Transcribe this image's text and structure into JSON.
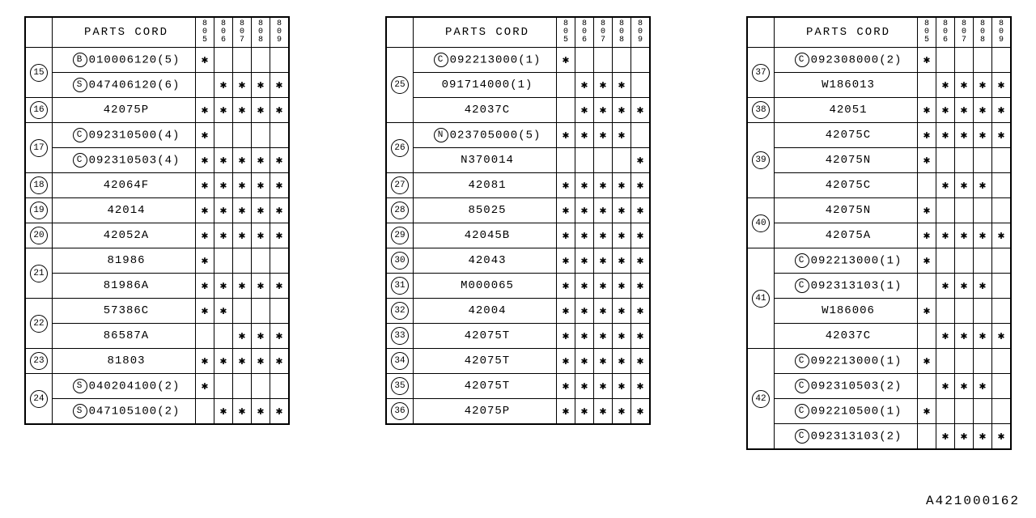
{
  "header_label": "PARTS CORD",
  "year_columns": [
    "805",
    "806",
    "807",
    "808",
    "809"
  ],
  "footer_id": "A421000162",
  "star": "*",
  "tables": [
    {
      "rows": [
        {
          "num": "15",
          "prefix": "B",
          "part": "010006120(5)",
          "marks": [
            "*",
            "",
            "",
            "",
            ""
          ],
          "group_start": true
        },
        {
          "num": "",
          "prefix": "S",
          "part": "047406120(6)",
          "marks": [
            "",
            "*",
            "*",
            "*",
            "*"
          ],
          "group_end": true
        },
        {
          "num": "16",
          "prefix": "",
          "part": "42075P",
          "marks": [
            "*",
            "*",
            "*",
            "*",
            "*"
          ]
        },
        {
          "num": "17",
          "prefix": "C",
          "part": "092310500(4)",
          "marks": [
            "*",
            "",
            "",
            "",
            ""
          ],
          "group_start": true
        },
        {
          "num": "",
          "prefix": "C",
          "part": "092310503(4)",
          "marks": [
            "*",
            "*",
            "*",
            "*",
            "*"
          ],
          "group_end": true
        },
        {
          "num": "18",
          "prefix": "",
          "part": "42064F",
          "marks": [
            "*",
            "*",
            "*",
            "*",
            "*"
          ]
        },
        {
          "num": "19",
          "prefix": "",
          "part": "42014",
          "marks": [
            "*",
            "*",
            "*",
            "*",
            "*"
          ]
        },
        {
          "num": "20",
          "prefix": "",
          "part": "42052A",
          "marks": [
            "*",
            "*",
            "*",
            "*",
            "*"
          ]
        },
        {
          "num": "21",
          "prefix": "",
          "part": "81986",
          "marks": [
            "*",
            "",
            "",
            "",
            ""
          ],
          "group_start": true
        },
        {
          "num": "",
          "prefix": "",
          "part": "81986A",
          "marks": [
            "*",
            "*",
            "*",
            "*",
            "*"
          ],
          "group_end": true
        },
        {
          "num": "22",
          "prefix": "",
          "part": "57386C",
          "marks": [
            "*",
            "*",
            "",
            "",
            ""
          ],
          "group_start": true
        },
        {
          "num": "",
          "prefix": "",
          "part": "86587A",
          "marks": [
            "",
            "",
            "*",
            "*",
            "*"
          ],
          "group_end": true
        },
        {
          "num": "23",
          "prefix": "",
          "part": "81803",
          "marks": [
            "*",
            "*",
            "*",
            "*",
            "*"
          ]
        },
        {
          "num": "24",
          "prefix": "S",
          "part": "040204100(2)",
          "marks": [
            "*",
            "",
            "",
            "",
            ""
          ],
          "group_start": true
        },
        {
          "num": "",
          "prefix": "S",
          "part": "047105100(2)",
          "marks": [
            "",
            "*",
            "*",
            "*",
            "*"
          ],
          "group_end": true
        }
      ]
    },
    {
      "rows": [
        {
          "num": "25",
          "prefix": "C",
          "part": "092213000(1)",
          "marks": [
            "*",
            "",
            "",
            "",
            ""
          ],
          "group_start": true
        },
        {
          "num": "",
          "prefix": "",
          "part": "091714000(1)",
          "marks": [
            "",
            "*",
            "*",
            "*",
            ""
          ],
          "group_mid": true
        },
        {
          "num": "",
          "prefix": "",
          "part": "42037C",
          "marks": [
            "",
            "*",
            "*",
            "*",
            "*"
          ],
          "group_end": true
        },
        {
          "num": "26",
          "prefix": "N",
          "part": "023705000(5)",
          "marks": [
            "*",
            "*",
            "*",
            "*",
            ""
          ],
          "group_start": true
        },
        {
          "num": "",
          "prefix": "",
          "part": "N370014",
          "marks": [
            "",
            "",
            "",
            "",
            "*"
          ],
          "group_end": true
        },
        {
          "num": "27",
          "prefix": "",
          "part": "42081",
          "marks": [
            "*",
            "*",
            "*",
            "*",
            "*"
          ]
        },
        {
          "num": "28",
          "prefix": "",
          "part": "85025",
          "marks": [
            "*",
            "*",
            "*",
            "*",
            "*"
          ]
        },
        {
          "num": "29",
          "prefix": "",
          "part": "42045B",
          "marks": [
            "*",
            "*",
            "*",
            "*",
            "*"
          ]
        },
        {
          "num": "30",
          "prefix": "",
          "part": "42043",
          "marks": [
            "*",
            "*",
            "*",
            "*",
            "*"
          ]
        },
        {
          "num": "31",
          "prefix": "",
          "part": "M000065",
          "marks": [
            "*",
            "*",
            "*",
            "*",
            "*"
          ]
        },
        {
          "num": "32",
          "prefix": "",
          "part": "42004",
          "marks": [
            "*",
            "*",
            "*",
            "*",
            "*"
          ]
        },
        {
          "num": "33",
          "prefix": "",
          "part": "42075T",
          "marks": [
            "*",
            "*",
            "*",
            "*",
            "*"
          ]
        },
        {
          "num": "34",
          "prefix": "",
          "part": "42075T",
          "marks": [
            "*",
            "*",
            "*",
            "*",
            "*"
          ]
        },
        {
          "num": "35",
          "prefix": "",
          "part": "42075T",
          "marks": [
            "*",
            "*",
            "*",
            "*",
            "*"
          ]
        },
        {
          "num": "36",
          "prefix": "",
          "part": "42075P",
          "marks": [
            "*",
            "*",
            "*",
            "*",
            "*"
          ]
        }
      ]
    },
    {
      "rows": [
        {
          "num": "37",
          "prefix": "C",
          "part": "092308000(2)",
          "marks": [
            "*",
            "",
            "",
            "",
            ""
          ],
          "group_start": true
        },
        {
          "num": "",
          "prefix": "",
          "part": "W186013",
          "marks": [
            "",
            "*",
            "*",
            "*",
            "*"
          ],
          "group_end": true
        },
        {
          "num": "38",
          "prefix": "",
          "part": "42051",
          "marks": [
            "*",
            "*",
            "*",
            "*",
            "*"
          ]
        },
        {
          "num": "39",
          "prefix": "",
          "part": "42075C",
          "marks": [
            "*",
            "*",
            "*",
            "*",
            "*"
          ],
          "group_start": true
        },
        {
          "num": "",
          "prefix": "",
          "part": "42075N",
          "marks": [
            "*",
            "",
            "",
            "",
            ""
          ],
          "group_mid": true
        },
        {
          "num": "",
          "prefix": "",
          "part": "42075C",
          "marks": [
            "",
            "*",
            "*",
            "*",
            ""
          ],
          "group_end": true
        },
        {
          "num": "40",
          "prefix": "",
          "part": "42075N",
          "marks": [
            "*",
            "",
            "",
            "",
            ""
          ],
          "group_start": true
        },
        {
          "num": "",
          "prefix": "",
          "part": "42075A",
          "marks": [
            "*",
            "*",
            "*",
            "*",
            "*"
          ],
          "group_end": true
        },
        {
          "num": "41",
          "prefix": "C",
          "part": "092213000(1)",
          "marks": [
            "*",
            "",
            "",
            "",
            ""
          ],
          "group_start": true
        },
        {
          "num": "",
          "prefix": "C",
          "part": "092313103(1)",
          "marks": [
            "",
            "*",
            "*",
            "*",
            ""
          ],
          "group_mid": true
        },
        {
          "num": "",
          "prefix": "",
          "part": "W186006",
          "marks": [
            "*",
            "",
            "",
            "",
            ""
          ],
          "group_mid": true
        },
        {
          "num": "",
          "prefix": "",
          "part": "42037C",
          "marks": [
            "",
            "*",
            "*",
            "*",
            "*"
          ],
          "group_end": true
        },
        {
          "num": "42",
          "prefix": "C",
          "part": "092213000(1)",
          "marks": [
            "*",
            "",
            "",
            "",
            ""
          ],
          "group_start": true
        },
        {
          "num": "",
          "prefix": "C",
          "part": "092310503(2)",
          "marks": [
            "",
            "*",
            "*",
            "*",
            ""
          ],
          "group_mid": true
        },
        {
          "num": "",
          "prefix": "C",
          "part": "092210500(1)",
          "marks": [
            "*",
            "",
            "",
            "",
            ""
          ],
          "group_mid": true
        },
        {
          "num": "",
          "prefix": "C",
          "part": "092313103(2)",
          "marks": [
            "",
            "*",
            "*",
            "*",
            "*"
          ],
          "group_end": true
        }
      ]
    }
  ]
}
